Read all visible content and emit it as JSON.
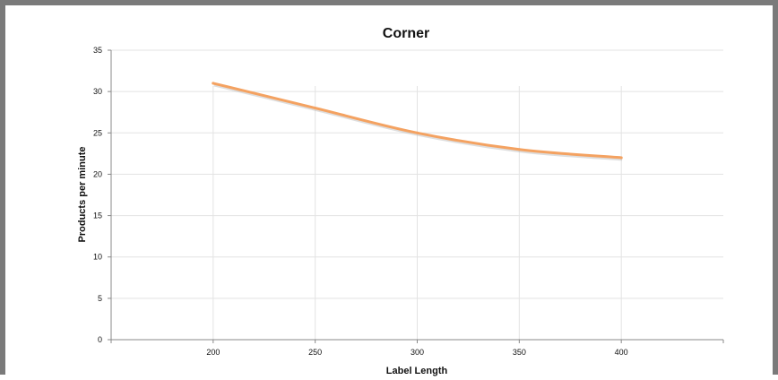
{
  "chart_data": {
    "type": "line",
    "title": "Corner",
    "xlabel": "Label Length",
    "ylabel": "Products per minute",
    "x": [
      200,
      250,
      300,
      350,
      400
    ],
    "series": [
      {
        "values": [
          31,
          28,
          25,
          23,
          22
        ]
      }
    ],
    "xlim": [
      150,
      450
    ],
    "ylim": [
      0,
      35
    ],
    "y_ticks": [
      0,
      5,
      10,
      15,
      20,
      25,
      30,
      35
    ],
    "x_ticks": [
      200,
      250,
      300,
      350,
      400
    ],
    "grid": true,
    "line_color": "#f4a261",
    "grid_color": "#e3e3e3"
  }
}
